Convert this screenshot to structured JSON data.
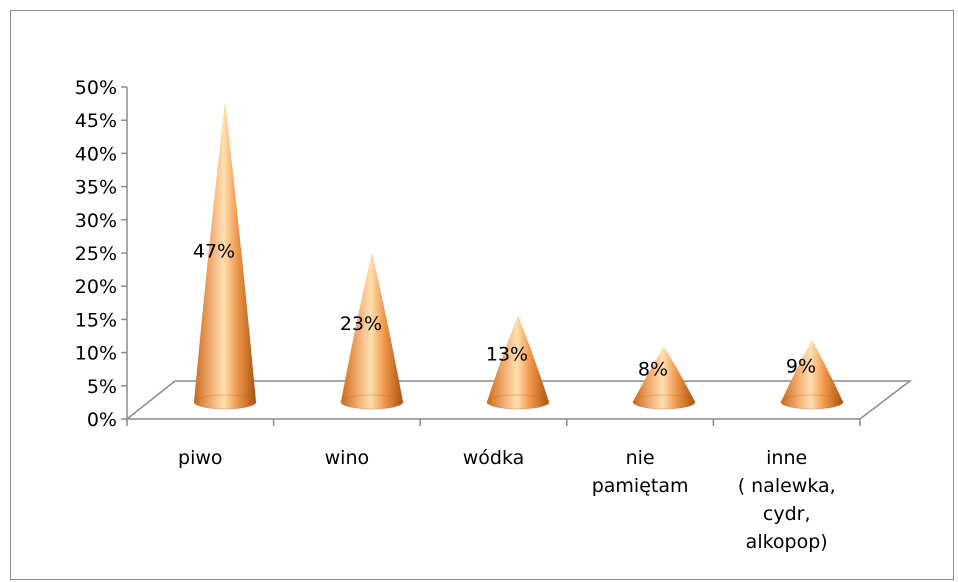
{
  "chart_data": {
    "type": "bar",
    "style": "3d-cone",
    "title": "",
    "xlabel": "",
    "ylabel": "",
    "ylim": [
      0,
      50
    ],
    "yticks": [
      "0%",
      "5%",
      "10%",
      "15%",
      "20%",
      "25%",
      "30%",
      "35%",
      "40%",
      "45%",
      "50%"
    ],
    "categories": [
      [
        "piwo"
      ],
      [
        "wino"
      ],
      [
        "wódka"
      ],
      [
        "nie",
        "pamiętam"
      ],
      [
        "inne",
        "( nalewka,",
        "cydr,",
        "alkopop)"
      ]
    ],
    "values": [
      47,
      23,
      13,
      8,
      9
    ],
    "data_labels": [
      "47%",
      "23%",
      "13%",
      "8%",
      "9%"
    ],
    "grid": false,
    "legend": "none",
    "colors": {
      "cone_light": "#ffe2a8",
      "cone_mid": "#f4a460",
      "cone_dark": "#b85c12",
      "axis": "#8c8c8c"
    }
  }
}
